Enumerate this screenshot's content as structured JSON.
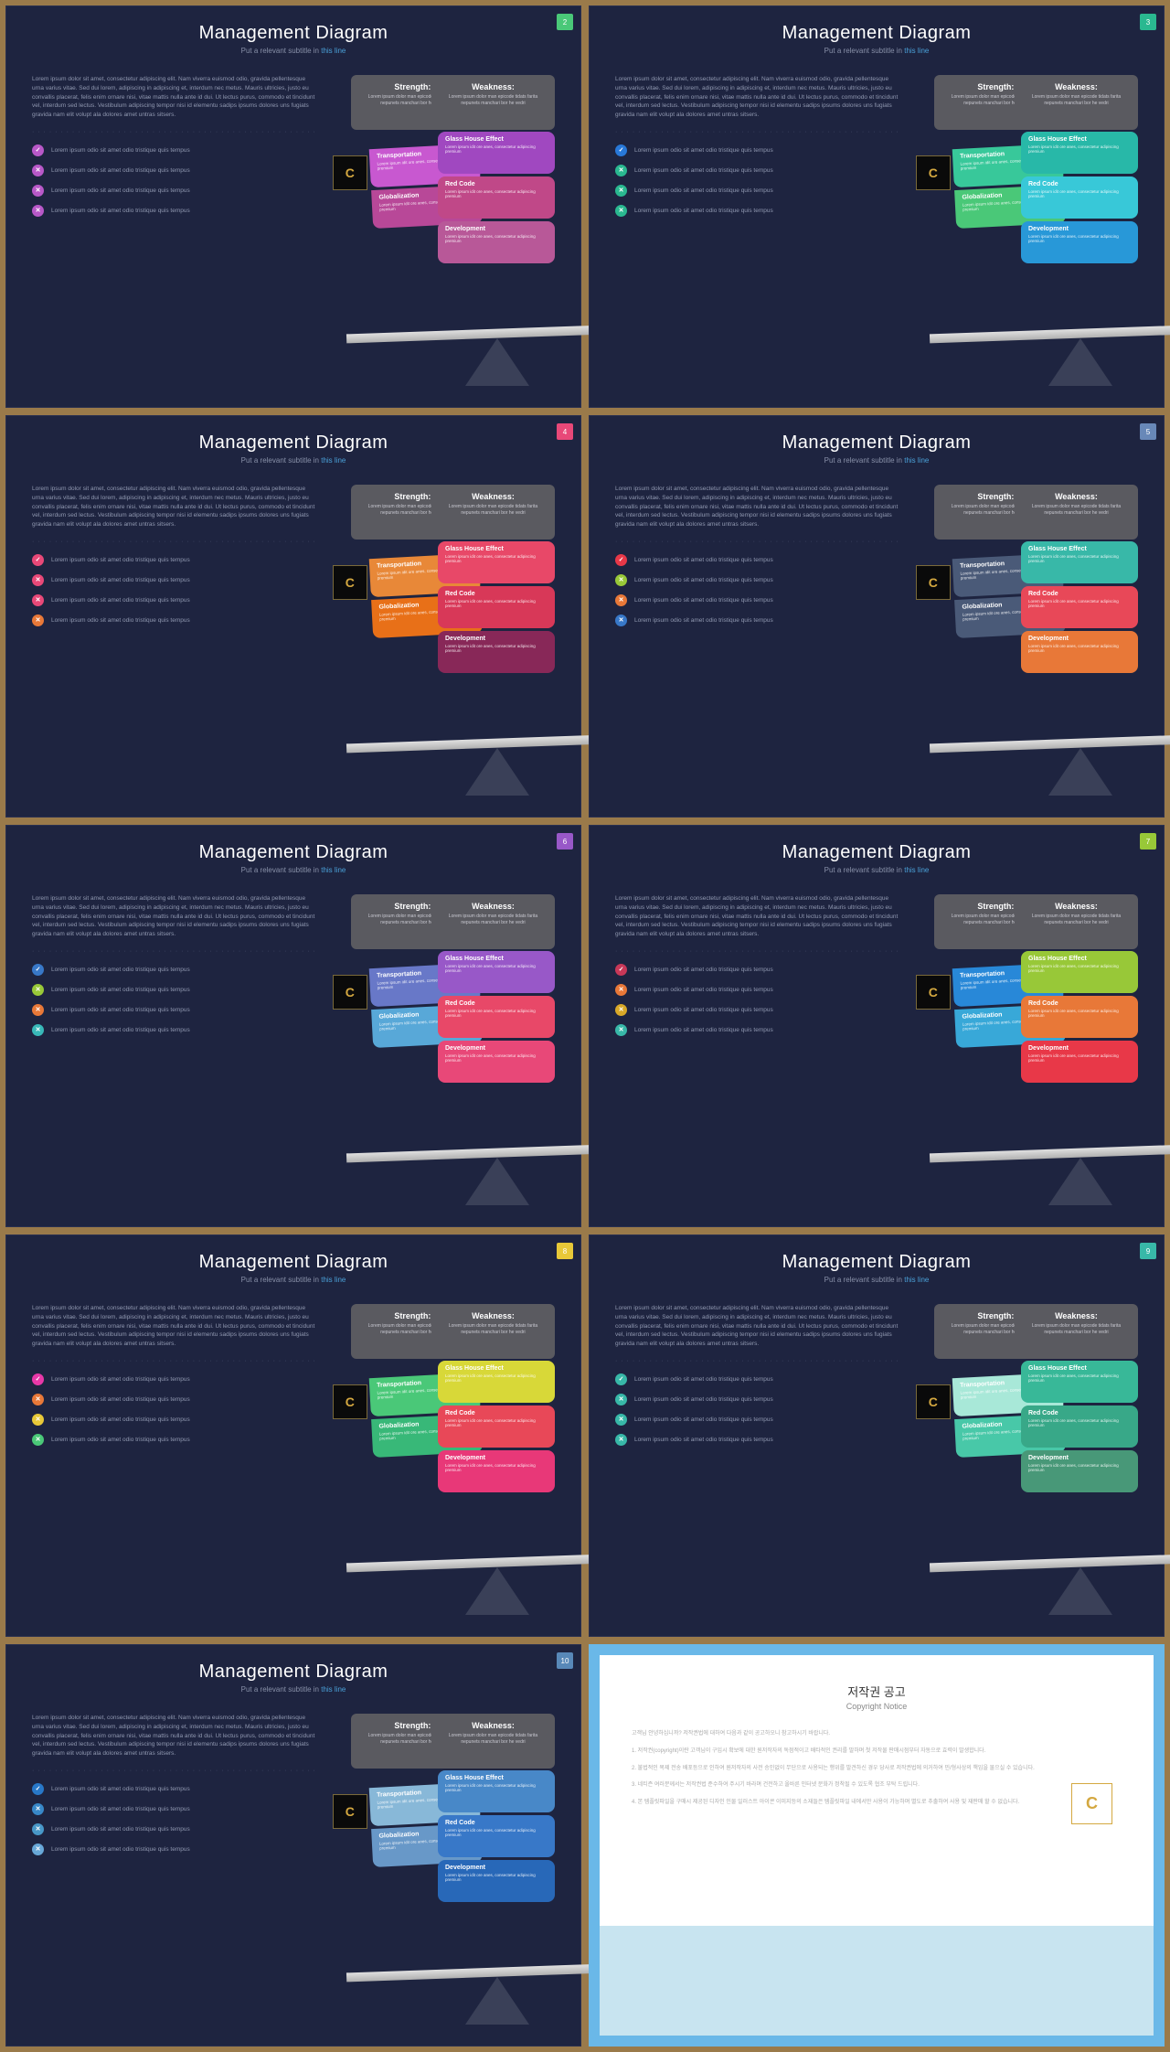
{
  "common": {
    "title": "Management Diagram",
    "subtitle_pre": "Put a relevant subtitle in ",
    "subtitle_hl": "this line",
    "para": "Lorem ipsum dolor sit amet, consectetur adipiscing elit. Nam viverra euismod odio, gravida pellentesque urna varius vitae. Sed dui lorem, adipiscing in adipiscing et, interdum nec metus. Mauris ultricies, justo eu convallis placerat, felis enim ornare nisi, vitae mattis nulla ante id dui. Ut lectus purus, commodo et tincidunt vel, interdum sed lectus. Vestibulum adipiscing tempor nisi id elementu sadips ipsums dolores uns fugiats gravida nam elit volupt ala dolores amet untras sitsers.",
    "bullet_text": "Lorem ipsum odio sit amet odio tristique quis tempus",
    "strength": "Strength:",
    "weakness": "Weakness:",
    "swtext": "Lorem ipsum dolor man epicode tidats farita nepunets manchari bor he vedri",
    "cards_left": [
      "Transportation",
      "Globalization"
    ],
    "cards_right": [
      "Glass House Effect",
      "Red Code",
      "Development"
    ],
    "card_text": "Lorem ipsum idit ore anes, consectetur adipiscing premium",
    "dots": "· · · · · · · · · · · · · · · · · · · · · · · · · · · · · · · · · · · · · · · · · · · · · · · · · ·"
  },
  "slides": [
    {
      "num": "2",
      "numbg": "#4ac878",
      "bicons": [
        "#b858c8",
        "#b858c8",
        "#b858c8",
        "#b858c8"
      ],
      "lcards": [
        "#c858d0",
        "#b84898"
      ],
      "rcards": [
        "#a048c0",
        "#c04888",
        "#b85898"
      ]
    },
    {
      "num": "3",
      "numbg": "#2ab890",
      "bicons": [
        "#2878d8",
        "#2ab890",
        "#2ab890",
        "#2ab890"
      ],
      "lcards": [
        "#38c89a",
        "#4ac878"
      ],
      "rcards": [
        "#28b8a8",
        "#38c8d8",
        "#2898d8"
      ]
    },
    {
      "num": "4",
      "numbg": "#e84878",
      "bicons": [
        "#e84878",
        "#e84878",
        "#e84878",
        "#e87838"
      ],
      "lcards": [
        "#e88838",
        "#e87018"
      ],
      "rcards": [
        "#e84868",
        "#d83858",
        "#882858"
      ]
    },
    {
      "num": "5",
      "numbg": "#6888b8",
      "bicons": [
        "#e83848",
        "#98c838",
        "#e87838",
        "#3878c8"
      ],
      "lcards": [
        "#4a5a78",
        "#4a5a78"
      ],
      "rcards": [
        "#38b8a8",
        "#e84858",
        "#e87838"
      ]
    },
    {
      "num": "6",
      "numbg": "#9858c8",
      "bicons": [
        "#3878c8",
        "#98c838",
        "#e87838",
        "#38b8b8"
      ],
      "lcards": [
        "#6878c8",
        "#58a8d8"
      ],
      "rcards": [
        "#9858c8",
        "#e84868",
        "#e84878"
      ]
    },
    {
      "num": "7",
      "numbg": "#98c838",
      "bicons": [
        "#c83858",
        "#e87838",
        "#d8a828",
        "#38b8a8"
      ],
      "lcards": [
        "#2888d8",
        "#38a8d8"
      ],
      "rcards": [
        "#98c838",
        "#e87838",
        "#e83848"
      ]
    },
    {
      "num": "8",
      "numbg": "#e8c838",
      "bicons": [
        "#e838a8",
        "#e87838",
        "#e8c838",
        "#4ac878"
      ],
      "lcards": [
        "#4ac878",
        "#38b878"
      ],
      "rcards": [
        "#d8d838",
        "#e84858",
        "#e83878"
      ]
    },
    {
      "num": "9",
      "numbg": "#38b8a8",
      "bicons": [
        "#38b8a8",
        "#38b8a8",
        "#38b8a8",
        "#38b8a8"
      ],
      "lcards": [
        "#a8e8d8",
        "#48c8a8"
      ],
      "rcards": [
        "#38b898",
        "#38a888",
        "#489878"
      ]
    },
    {
      "num": "10",
      "numbg": "#5888b8",
      "bicons": [
        "#2878c8",
        "#3888c8",
        "#4898c8",
        "#68a8d8"
      ],
      "lcards": [
        "#88b8d8",
        "#6898c8"
      ],
      "rcards": [
        "#4888c8",
        "#3878c8",
        "#2868b8"
      ]
    }
  ],
  "copyright": {
    "ktitle": "저작권 공고",
    "etitle": "Copyright Notice",
    "lines": [
      "고객님 안녕하십니까? 저작권법에 대하여 다음과 같이 공고하오니 참고하시기 바랍니다.",
      "1. 저작권(copyright)이란 고객님이 구입시 확보에 대한 원저작자의 독점적이고 배타적인 권리를 말하며 첫 저작물 판매시점부터 자동으로 효력이 발생합니다.",
      "2. 불법적인 복제 전송 배포등으로 인하여 원저작자의 사전 승인없이 무단으로 사용되는 행위를 발견하신 경우 당사로 저작권법에 의거하여 민/형사상의 책임을 물으실 수 있습니다.",
      "3. 네티즌 여러분께서는 저작권법 준수하여 주시기 바라며 건전하고 올바른 인터넷 문화가 정착될 수 있도록 협조 부탁 드립니다.",
      "4. 본 템플릿파일을 구매시 제공된 디자인 인물 일러스트 아이콘 이미지등의 소재들은 템플릿파일 내에서만 사용이 가능하며 별도로 추출하여 사용 및 재판매 할 수 없습니다."
    ]
  }
}
